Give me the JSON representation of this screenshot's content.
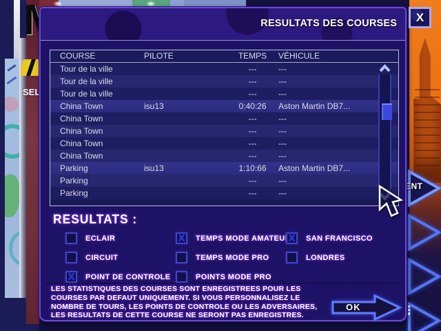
{
  "window": {
    "title": "RESULTATS DES COURSES",
    "close_label": "X"
  },
  "table": {
    "headers": [
      "COURSE",
      "PILOTE",
      "TEMPS",
      "VÉHICULE"
    ],
    "rows": [
      {
        "course": "Tour de la ville",
        "pilote": "",
        "temps": "---",
        "vehicule": "---",
        "highlighted": false
      },
      {
        "course": "Tour de la ville",
        "pilote": "",
        "temps": "---",
        "vehicule": "---",
        "highlighted": false
      },
      {
        "course": "Tour de la ville",
        "pilote": "",
        "temps": "---",
        "vehicule": "---",
        "highlighted": false
      },
      {
        "course": "China Town",
        "pilote": "isu13",
        "temps": "0:40:26",
        "vehicule": "Aston Martin DB7...",
        "highlighted": true
      },
      {
        "course": "China Town",
        "pilote": "",
        "temps": "---",
        "vehicule": "---",
        "highlighted": false
      },
      {
        "course": "China Town",
        "pilote": "",
        "temps": "---",
        "vehicule": "---",
        "highlighted": false
      },
      {
        "course": "China Town",
        "pilote": "",
        "temps": "---",
        "vehicule": "---",
        "highlighted": false
      },
      {
        "course": "China Town",
        "pilote": "",
        "temps": "---",
        "vehicule": "---",
        "highlighted": false
      },
      {
        "course": "Parking",
        "pilote": "isu13",
        "temps": "1:10:66",
        "vehicule": "Aston Martin DB7...",
        "highlighted": true
      },
      {
        "course": "Parking",
        "pilote": "",
        "temps": "---",
        "vehicule": "---",
        "highlighted": false
      },
      {
        "course": "Parking",
        "pilote": "",
        "temps": "---",
        "vehicule": "---",
        "highlighted": false
      }
    ]
  },
  "results": {
    "heading": "RESULTATS :",
    "check_glyph": "X",
    "columns": [
      {
        "items": [
          {
            "label": "ECLAIR",
            "checked": false
          },
          {
            "label": "CIRCUIT",
            "checked": false
          },
          {
            "label": "POINT DE CONTROLE",
            "checked": true
          }
        ]
      },
      {
        "items": [
          {
            "label": "TEMPS MODE AMATEUR",
            "checked": true
          },
          {
            "label": "TEMPS MODE PRO",
            "checked": false
          },
          {
            "label": "POINTS MODE PRO",
            "checked": false
          }
        ]
      },
      {
        "items": [
          {
            "label": "SAN FRANCISCO",
            "checked": true
          },
          {
            "label": "LONDRES",
            "checked": false
          }
        ]
      }
    ]
  },
  "note": {
    "lines": [
      "LES STATISTIQUES DES COURSES SONT ENREGISTREES POUR LES",
      "COURSES PAR DEFAUT UNIQUEMENT. SI VOUS PERSONNALISEZ LE",
      "NOMBRE DE TOURS, LES POINTS DE CONTROLE OU LES ADVERSAIRES,",
      "LES RESULTATS DE CETTE COURSE NE SERONT PAS ENREGISTRES."
    ]
  },
  "ok_button": {
    "label": "OK"
  },
  "background": {
    "menu_text_fragment": "SEL",
    "next_button_fragment": "ENT"
  },
  "colors": {
    "dialog_bg": "#1d1266",
    "dialog_border": "#6a48d8",
    "titlebar": "#2c1a80",
    "row_odd": "#1d1d61",
    "row_even": "#272770",
    "row_highlight": "#2e3184",
    "checkbox_border": "#4343c8",
    "check_mark": "#2b3cdf",
    "glow": "#8a3cf0",
    "scroll_thumb": "#3b49e0",
    "orange_bg": "#ef7d1c",
    "arrow_blue": "#5577ee"
  }
}
